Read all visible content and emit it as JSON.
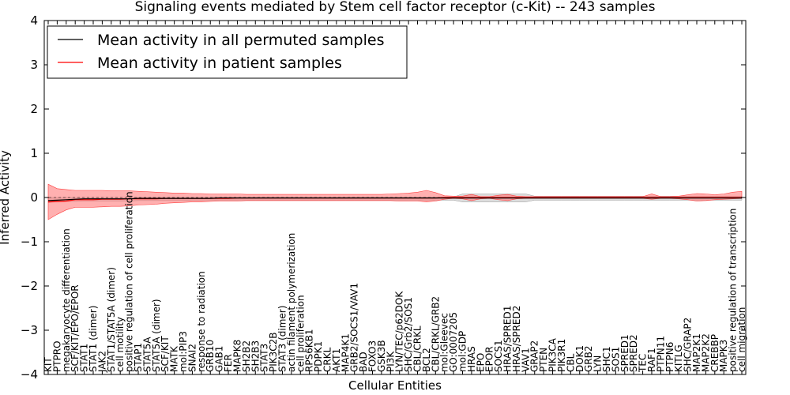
{
  "chart_data": {
    "type": "line",
    "title": "Signaling events mediated by Stem cell factor receptor (c-Kit) -- 243 samples",
    "xlabel": "Cellular Entities",
    "ylabel": "Inferred Activity",
    "ylim": [
      -4,
      4
    ],
    "yticks": [
      -4,
      -3,
      -2,
      -1,
      0,
      1,
      2,
      3,
      4
    ],
    "ytick_labels": [
      "−4",
      "−3",
      "−2",
      "−1",
      "0",
      "1",
      "2",
      "3",
      "4"
    ],
    "legend": {
      "placement": "top-left",
      "entries": [
        {
          "label": "Mean activity in all permuted samples",
          "color": "#000000"
        },
        {
          "label": "Mean activity in patient samples",
          "color": "#ff0000"
        }
      ]
    },
    "categories": [
      "KIT",
      "PTPRO",
      "megakaryocyte differentiation",
      "SCF/KIT/EPO/EPOR",
      "STAT1",
      "STAT1 (dimer)",
      "JAK2",
      "STAT1/STAT5A (dimer)",
      "cell motility",
      "positive regulation of cell proliferation",
      "STAP1",
      "STAT5A",
      "STAT5A (dimer)",
      "SCF/KIT",
      "MATK",
      "mol:PIP3",
      "SNAI2",
      "response to radiation",
      "GRB10",
      "GAB1",
      "FER",
      "MAPK8",
      "SH2B2",
      "SH2B3",
      "STAT3",
      "PIK3C2B",
      "STAT3 (dimer)",
      "actin filament polymerization",
      "cell proliferation",
      "RPS6KB1",
      "PDPK1",
      "CRKL",
      "AKT1",
      "MAP4K1",
      "GRB2/SOCS1/VAV1",
      "BAD",
      "FOXO3",
      "GSK3B",
      "PI3K",
      "LYN/TEC/p62DOK",
      "SHC/Grb2/SOS1",
      "CBL/CRKL",
      "BCL2",
      "CBL/CRKL/GRB2",
      "mol:Gleevec",
      "GO:0007205",
      "mol:GDP",
      "HRAS",
      "EPO",
      "EPOR",
      "SOCS1",
      "HRAS/SPRED1",
      "HRAS/SPRED2",
      "VAV1",
      "GRAP2",
      "PTEN",
      "PIK3CA",
      "PIK3R1",
      "CBL",
      "DOK1",
      "GRB2",
      "LYN",
      "SHC1",
      "SOS1",
      "SPRED1",
      "SPRED2",
      "TEC",
      "RAF1",
      "PTPN11",
      "PTPN6",
      "KITLG",
      "SHC/GRAP2",
      "MAP2K1",
      "MAP2K2",
      "CREBBP",
      "MAPK3",
      "positive regulation of transcription",
      "cell migration"
    ],
    "series": [
      {
        "name": "Mean activity in all permuted samples",
        "color": "#000000",
        "values": [
          -0.07,
          -0.06,
          -0.05,
          -0.04,
          -0.03,
          -0.03,
          -0.03,
          -0.03,
          -0.03,
          -0.03,
          -0.02,
          -0.02,
          -0.02,
          -0.02,
          -0.02,
          -0.02,
          -0.02,
          -0.02,
          -0.02,
          -0.01,
          -0.01,
          -0.01,
          -0.01,
          -0.01,
          -0.01,
          -0.01,
          -0.01,
          -0.01,
          -0.01,
          -0.01,
          -0.01,
          -0.01,
          -0.01,
          -0.01,
          -0.01,
          -0.01,
          -0.01,
          -0.01,
          -0.01,
          -0.01,
          -0.01,
          -0.01,
          -0.01,
          -0.01,
          -0.01,
          -0.01,
          -0.01,
          -0.01,
          -0.01,
          -0.01,
          -0.01,
          -0.01,
          -0.01,
          -0.01,
          -0.01,
          -0.01,
          -0.01,
          -0.01,
          -0.01,
          -0.01,
          -0.01,
          -0.01,
          -0.01,
          -0.01,
          -0.01,
          -0.01,
          -0.01,
          -0.01,
          -0.01,
          -0.01,
          -0.01,
          -0.01,
          -0.01,
          -0.01,
          -0.01,
          -0.01,
          -0.01,
          -0.01
        ],
        "lower": [
          -0.11,
          -0.1,
          -0.09,
          -0.09,
          -0.08,
          -0.08,
          -0.08,
          -0.08,
          -0.08,
          -0.08,
          -0.07,
          -0.07,
          -0.07,
          -0.07,
          -0.07,
          -0.07,
          -0.06,
          -0.06,
          -0.06,
          -0.06,
          -0.06,
          -0.06,
          -0.06,
          -0.06,
          -0.06,
          -0.06,
          -0.06,
          -0.06,
          -0.06,
          -0.06,
          -0.06,
          -0.06,
          -0.06,
          -0.06,
          -0.06,
          -0.06,
          -0.06,
          -0.06,
          -0.06,
          -0.06,
          -0.06,
          -0.06,
          -0.06,
          -0.06,
          -0.06,
          -0.06,
          -0.1,
          -0.1,
          -0.1,
          -0.1,
          -0.1,
          -0.1,
          -0.1,
          -0.1,
          -0.06,
          -0.06,
          -0.06,
          -0.06,
          -0.06,
          -0.06,
          -0.06,
          -0.06,
          -0.06,
          -0.06,
          -0.06,
          -0.06,
          -0.06,
          -0.06,
          -0.06,
          -0.06,
          -0.06,
          -0.06,
          -0.06,
          -0.06,
          -0.06,
          -0.06,
          -0.06,
          -0.06
        ],
        "upper": [
          0.0,
          0.0,
          0.0,
          0.0,
          0.0,
          0.0,
          0.0,
          0.0,
          0.0,
          0.0,
          0.0,
          0.0,
          0.0,
          0.0,
          0.0,
          0.0,
          0.0,
          0.0,
          0.0,
          0.01,
          0.01,
          0.01,
          0.01,
          0.01,
          0.01,
          0.01,
          0.01,
          0.01,
          0.01,
          0.01,
          0.01,
          0.01,
          0.01,
          0.01,
          0.01,
          0.01,
          0.01,
          0.01,
          0.01,
          0.01,
          0.01,
          0.01,
          0.01,
          0.01,
          0.01,
          0.01,
          0.08,
          0.08,
          0.08,
          0.08,
          0.08,
          0.08,
          0.08,
          0.08,
          0.03,
          0.03,
          0.03,
          0.03,
          0.03,
          0.03,
          0.03,
          0.03,
          0.03,
          0.03,
          0.03,
          0.03,
          0.03,
          0.03,
          0.03,
          0.03,
          0.03,
          0.03,
          0.03,
          0.03,
          0.03,
          0.03,
          0.03,
          0.03
        ]
      },
      {
        "name": "Mean activity in patient samples",
        "color": "#ff0000",
        "values": [
          -0.1,
          -0.09,
          -0.08,
          -0.05,
          -0.05,
          -0.05,
          -0.04,
          -0.04,
          -0.04,
          -0.03,
          -0.03,
          -0.03,
          -0.03,
          -0.02,
          -0.02,
          -0.02,
          -0.02,
          -0.02,
          -0.02,
          -0.02,
          -0.02,
          -0.01,
          -0.01,
          -0.01,
          -0.01,
          -0.01,
          -0.01,
          -0.01,
          -0.01,
          -0.01,
          -0.01,
          -0.01,
          -0.01,
          -0.01,
          -0.01,
          -0.01,
          -0.01,
          -0.01,
          -0.01,
          -0.01,
          -0.01,
          -0.01,
          -0.01,
          -0.01,
          0.0,
          0.0,
          0.0,
          0.0,
          0.0,
          0.0,
          0.0,
          0.0,
          0.0,
          0.0,
          0.0,
          0.0,
          0.0,
          0.0,
          0.0,
          0.0,
          0.0,
          0.0,
          0.0,
          0.0,
          0.0,
          0.0,
          0.0,
          0.0,
          0.0,
          0.0,
          0.0,
          0.0,
          0.0,
          0.0,
          0.0,
          0.0,
          0.0,
          0.0
        ],
        "lower": [
          -0.5,
          -0.38,
          -0.28,
          -0.22,
          -0.22,
          -0.22,
          -0.21,
          -0.2,
          -0.2,
          -0.19,
          -0.17,
          -0.16,
          -0.15,
          -0.13,
          -0.12,
          -0.11,
          -0.1,
          -0.1,
          -0.09,
          -0.08,
          -0.08,
          -0.08,
          -0.07,
          -0.07,
          -0.07,
          -0.07,
          -0.07,
          -0.07,
          -0.07,
          -0.07,
          -0.07,
          -0.07,
          -0.07,
          -0.07,
          -0.07,
          -0.07,
          -0.07,
          -0.07,
          -0.07,
          -0.08,
          -0.08,
          -0.08,
          -0.1,
          -0.08,
          -0.04,
          -0.02,
          -0.03,
          -0.07,
          -0.03,
          -0.02,
          -0.05,
          -0.07,
          -0.03,
          -0.02,
          -0.02,
          -0.02,
          -0.02,
          -0.02,
          -0.02,
          -0.02,
          -0.02,
          -0.02,
          -0.02,
          -0.02,
          -0.02,
          -0.02,
          -0.02,
          -0.04,
          -0.02,
          -0.02,
          -0.03,
          -0.05,
          -0.08,
          -0.07,
          -0.05,
          -0.04,
          -0.03,
          -0.02
        ],
        "upper": [
          0.3,
          0.2,
          0.18,
          0.16,
          0.16,
          0.16,
          0.16,
          0.15,
          0.15,
          0.15,
          0.14,
          0.13,
          0.12,
          0.11,
          0.1,
          0.1,
          0.09,
          0.09,
          0.08,
          0.08,
          0.08,
          0.08,
          0.07,
          0.07,
          0.07,
          0.07,
          0.07,
          0.07,
          0.07,
          0.07,
          0.07,
          0.07,
          0.07,
          0.07,
          0.07,
          0.07,
          0.07,
          0.07,
          0.08,
          0.09,
          0.1,
          0.12,
          0.16,
          0.11,
          0.04,
          0.03,
          0.03,
          0.07,
          0.02,
          0.02,
          0.05,
          0.07,
          0.03,
          0.02,
          0.02,
          0.02,
          0.02,
          0.02,
          0.02,
          0.02,
          0.02,
          0.02,
          0.02,
          0.02,
          0.02,
          0.02,
          0.02,
          0.08,
          0.02,
          0.02,
          0.03,
          0.06,
          0.09,
          0.08,
          0.06,
          0.08,
          0.12,
          0.14
        ]
      }
    ]
  }
}
